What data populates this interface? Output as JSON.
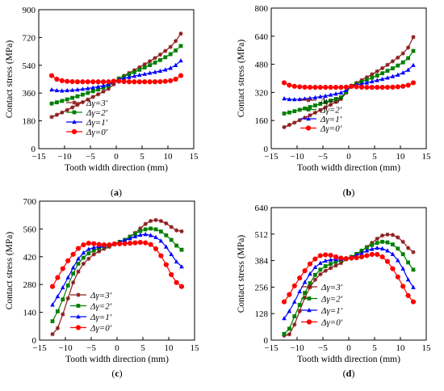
{
  "chart_data": [
    {
      "panel": "(a)",
      "type": "line",
      "xlabel": "Tooth width direction (mm)",
      "ylabel": "Contact stress (MPa)",
      "xlim": [
        -15,
        15
      ],
      "ylim": [
        0,
        900
      ],
      "xticks": [
        -15,
        -10,
        -5,
        0,
        5,
        10,
        15
      ],
      "yticks": [
        0,
        180,
        360,
        540,
        720,
        900
      ],
      "legend_position": "left-middle",
      "x": [
        -12.5,
        -11.5,
        -10.5,
        -9.5,
        -8.5,
        -7.5,
        -6.5,
        -5.5,
        -4.5,
        -3.5,
        -2.5,
        -1.5,
        -0.5,
        0.5,
        1.5,
        2.5,
        3.5,
        4.5,
        5.5,
        6.5,
        7.5,
        8.5,
        9.5,
        10.5,
        11.5,
        12.5
      ],
      "series": [
        {
          "name": "Δγ=3′",
          "color": "#8b1a1a",
          "marker": "star",
          "values": [
            205,
            219,
            234,
            250,
            267,
            284,
            301,
            318,
            335,
            352,
            370,
            388,
            416,
            454,
            472,
            490,
            508,
            527,
            546,
            566,
            587,
            609,
            633,
            659,
            697,
            745
          ]
        },
        {
          "name": "Δγ=2′",
          "color": "#008000",
          "marker": "square",
          "values": [
            292,
            300,
            309,
            319,
            329,
            339,
            350,
            361,
            372,
            383,
            395,
            406,
            432,
            454,
            468,
            482,
            496,
            511,
            526,
            541,
            557,
            574,
            592,
            612,
            636,
            665
          ]
        },
        {
          "name": "Δγ=1′",
          "color": "#0000ff",
          "marker": "triangle",
          "values": [
            382,
            377,
            375,
            377,
            379,
            382,
            386,
            390,
            395,
            401,
            408,
            416,
            433,
            447,
            456,
            463,
            470,
            477,
            483,
            490,
            496,
            503,
            511,
            522,
            540,
            570
          ]
        },
        {
          "name": "Δγ=0′",
          "color": "#ff0000",
          "marker": "circle",
          "values": [
            473,
            450,
            440,
            436,
            434,
            433,
            433,
            433,
            433,
            433,
            433,
            433,
            437,
            437,
            434,
            433,
            433,
            433,
            433,
            433,
            433,
            434,
            436,
            440,
            450,
            473
          ]
        }
      ]
    },
    {
      "panel": "(b)",
      "type": "line",
      "xlabel": "Tooth width direction (mm)",
      "ylabel": "Contact stress (MPa)",
      "xlim": [
        -15,
        15
      ],
      "ylim": [
        0,
        800
      ],
      "xticks": [
        -15,
        -10,
        -5,
        0,
        5,
        10,
        15
      ],
      "yticks": [
        0,
        160,
        320,
        480,
        640,
        800
      ],
      "legend_position": "left-middle",
      "x": [
        -12.5,
        -11.5,
        -10.5,
        -9.5,
        -8.5,
        -7.5,
        -6.5,
        -5.5,
        -4.5,
        -3.5,
        -2.5,
        -1.5,
        -0.5,
        0.5,
        1.5,
        2.5,
        3.5,
        4.5,
        5.5,
        6.5,
        7.5,
        8.5,
        9.5,
        10.5,
        11.5,
        12.5
      ],
      "series": [
        {
          "name": "Δγ=3′",
          "color": "#8b1a1a",
          "marker": "star",
          "values": [
            122,
            135,
            148,
            162,
            176,
            190,
            205,
            220,
            235,
            250,
            266,
            282,
            318,
            358,
            374,
            390,
            406,
            423,
            440,
            458,
            477,
            497,
            518,
            542,
            575,
            635
          ]
        },
        {
          "name": "Δγ=2′",
          "color": "#008000",
          "marker": "square",
          "values": [
            200,
            206,
            213,
            221,
            229,
            237,
            246,
            255,
            264,
            273,
            283,
            292,
            322,
            357,
            368,
            380,
            392,
            404,
            416,
            429,
            443,
            457,
            473,
            491,
            515,
            556
          ]
        },
        {
          "name": "Δγ=1′",
          "color": "#0000ff",
          "marker": "triangle",
          "values": [
            285,
            281,
            280,
            281,
            284,
            287,
            291,
            296,
            300,
            306,
            312,
            318,
            332,
            355,
            362,
            369,
            375,
            382,
            389,
            396,
            403,
            411,
            420,
            432,
            448,
            475
          ]
        },
        {
          "name": "Δγ=0′",
          "color": "#ff0000",
          "marker": "circle",
          "values": [
            375,
            361,
            355,
            352,
            350,
            349,
            349,
            349,
            349,
            349,
            349,
            349,
            350,
            354,
            352,
            350,
            349,
            349,
            349,
            349,
            349,
            350,
            352,
            355,
            361,
            375
          ]
        }
      ]
    },
    {
      "panel": "(c)",
      "type": "line",
      "xlabel": "Tooth width direction (mm)",
      "ylabel": "Contact stress (MPa)",
      "xlim": [
        -15,
        15
      ],
      "ylim": [
        0,
        700
      ],
      "xticks": [
        -15,
        -10,
        -5,
        0,
        5,
        10,
        15
      ],
      "yticks": [
        0,
        140,
        280,
        420,
        560,
        700
      ],
      "legend_position": "bottom-left",
      "x": [
        -12.5,
        -11.5,
        -10.5,
        -9.5,
        -8.5,
        -7.5,
        -6.5,
        -5.5,
        -4.5,
        -3.5,
        -2.5,
        -1.5,
        -0.5,
        0.5,
        1.5,
        2.5,
        3.5,
        4.5,
        5.5,
        6.5,
        7.5,
        8.5,
        9.5,
        10.5,
        11.5,
        12.5
      ],
      "series": [
        {
          "name": "Δγ=3′",
          "color": "#8b1a1a",
          "marker": "star",
          "values": [
            30,
            60,
            130,
            210,
            290,
            345,
            385,
            410,
            432,
            447,
            460,
            470,
            482,
            492,
            505,
            522,
            540,
            563,
            585,
            600,
            605,
            600,
            588,
            570,
            553,
            548
          ]
        },
        {
          "name": "Δγ=2′",
          "color": "#008000",
          "marker": "square",
          "values": [
            95,
            145,
            205,
            275,
            335,
            385,
            415,
            437,
            452,
            463,
            471,
            477,
            484,
            495,
            505,
            520,
            536,
            550,
            558,
            562,
            558,
            547,
            528,
            505,
            476,
            455
          ]
        },
        {
          "name": "Δγ=1′",
          "color": "#0000ff",
          "marker": "triangle",
          "values": [
            178,
            220,
            265,
            315,
            365,
            410,
            440,
            458,
            466,
            471,
            475,
            479,
            484,
            494,
            503,
            512,
            522,
            530,
            533,
            528,
            518,
            500,
            470,
            432,
            395,
            370
          ]
        },
        {
          "name": "Δγ=0′",
          "color": "#ff0000",
          "marker": "circle",
          "values": [
            270,
            315,
            360,
            400,
            432,
            462,
            480,
            488,
            486,
            482,
            480,
            480,
            485,
            485,
            486,
            488,
            490,
            492,
            490,
            482,
            460,
            425,
            380,
            330,
            290,
            270
          ]
        }
      ]
    },
    {
      "panel": "(d)",
      "type": "line",
      "xlabel": "Tooth width direction (mm)",
      "ylabel": "Contact stress (MPa)",
      "xlim": [
        -15,
        15
      ],
      "ylim": [
        0,
        640
      ],
      "xticks": [
        -15,
        -10,
        -5,
        0,
        5,
        10,
        15
      ],
      "yticks": [
        0,
        128,
        256,
        384,
        512,
        640
      ],
      "legend_position": "bottom-left",
      "x": [
        -12.5,
        -11.5,
        -10.5,
        -9.5,
        -8.5,
        -7.5,
        -6.5,
        -5.5,
        -4.5,
        -3.5,
        -2.5,
        -1.5,
        -0.5,
        0.5,
        1.5,
        2.5,
        3.5,
        4.5,
        5.5,
        6.5,
        7.5,
        8.5,
        9.5,
        10.5,
        11.5,
        12.5
      ],
      "series": [
        {
          "name": "Δγ=3′",
          "color": "#8b1a1a",
          "marker": "star",
          "values": [
            22,
            28,
            75,
            140,
            205,
            255,
            292,
            318,
            335,
            348,
            360,
            372,
            390,
            402,
            413,
            430,
            450,
            470,
            490,
            505,
            510,
            508,
            496,
            475,
            445,
            425
          ]
        },
        {
          "name": "Δγ=2′",
          "color": "#008000",
          "marker": "square",
          "values": [
            30,
            55,
            115,
            170,
            228,
            275,
            315,
            340,
            357,
            368,
            378,
            386,
            392,
            402,
            416,
            432,
            447,
            460,
            470,
            475,
            472,
            462,
            442,
            415,
            375,
            340
          ]
        },
        {
          "name": "Δγ=1′",
          "color": "#0000ff",
          "marker": "triangle",
          "values": [
            105,
            140,
            185,
            235,
            280,
            320,
            352,
            372,
            383,
            388,
            390,
            391,
            395,
            400,
            410,
            420,
            432,
            440,
            445,
            442,
            432,
            415,
            385,
            345,
            292,
            255
          ]
        },
        {
          "name": "Δγ=0′",
          "color": "#ff0000",
          "marker": "circle",
          "values": [
            185,
            220,
            262,
            300,
            335,
            368,
            392,
            408,
            412,
            410,
            402,
            396,
            394,
            396,
            398,
            402,
            408,
            414,
            414,
            402,
            380,
            345,
            305,
            260,
            215,
            185
          ]
        }
      ]
    }
  ]
}
